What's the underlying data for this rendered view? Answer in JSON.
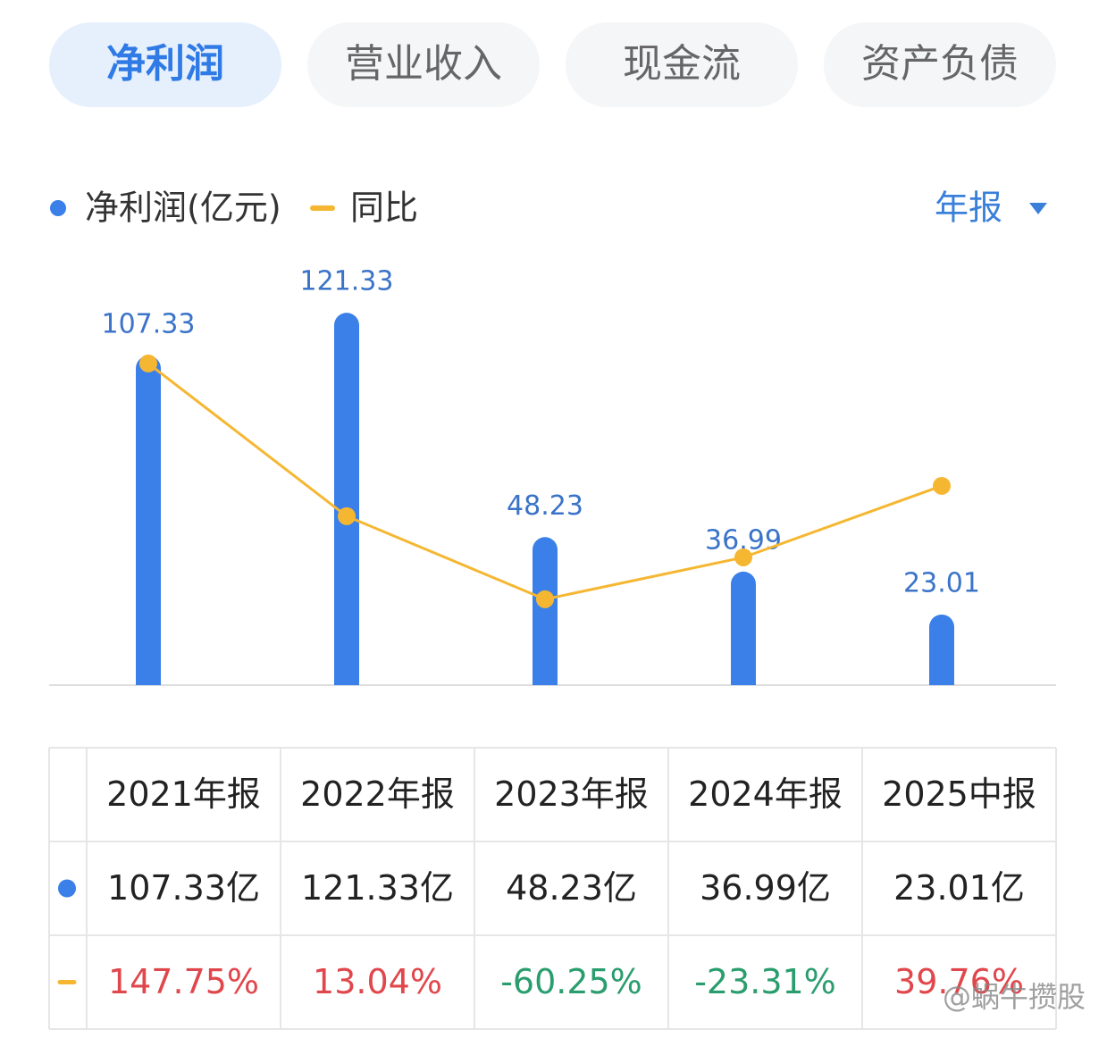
{
  "tabs": [
    "净利润",
    "营业收入",
    "现金流",
    "资产负债"
  ],
  "active_tab": 0,
  "period_selector": "年报",
  "watermark": "@蜗牛攒股",
  "chart_data": {
    "type": "bar",
    "categories": [
      "2021年报",
      "2022年报",
      "2023年报",
      "2024年报",
      "2025中报"
    ],
    "series": [
      {
        "name": "净利润(亿元)",
        "type": "bar",
        "color": "#3b7fe8",
        "label_color": "#3a73c8",
        "values": [
          107.33,
          121.33,
          48.23,
          36.99,
          23.01
        ],
        "value_labels": [
          "107.33亿",
          "121.33亿",
          "48.23亿",
          "36.99亿",
          "23.01亿"
        ]
      },
      {
        "name": "同比",
        "type": "line",
        "color": "#f5b731",
        "axis": "y2",
        "values": [
          147.75,
          13.04,
          -60.25,
          -23.31,
          39.76
        ],
        "value_labels": [
          "147.75%",
          "13.04%",
          "-60.25%",
          "-23.31%",
          "39.76%"
        ]
      }
    ],
    "ylim": [
      0,
      140
    ],
    "y2lim": [
      -136,
      243
    ],
    "positive_color": "#e0474c",
    "negative_color": "#2a9d6e"
  }
}
